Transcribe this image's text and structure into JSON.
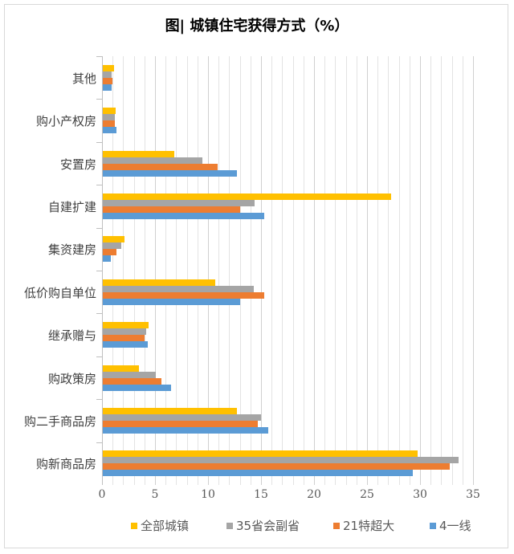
{
  "chart_data": {
    "type": "bar",
    "orientation": "horizontal",
    "title": "图| 城镇住宅获得方式（%）",
    "xlabel": "",
    "ylabel": "",
    "xlim": [
      0,
      35
    ],
    "xticks": [
      0,
      5,
      10,
      15,
      20,
      25,
      30,
      35
    ],
    "grid": true,
    "legend_position": "bottom",
    "categories": [
      "其他",
      "购小产权房",
      "安置房",
      "自建扩建",
      "集资建房",
      "低价购自单位",
      "继承赠与",
      "购政策房",
      "购二手商品房",
      "购新商品房"
    ],
    "series": [
      {
        "name": "全部城镇",
        "color": "#FFC000",
        "values": [
          1.1,
          1.3,
          6.8,
          27.3,
          2.1,
          10.7,
          4.4,
          3.5,
          12.7,
          29.8
        ]
      },
      {
        "name": "35省会副省",
        "color": "#A5A5A5",
        "values": [
          0.9,
          1.2,
          9.5,
          14.4,
          1.8,
          14.3,
          4.2,
          5.1,
          15.0,
          33.6
        ]
      },
      {
        "name": "21特超大",
        "color": "#ED7D31",
        "values": [
          1.0,
          1.2,
          10.9,
          13.0,
          1.4,
          15.3,
          4.0,
          5.6,
          14.7,
          32.8
        ]
      },
      {
        "name": "4一线",
        "color": "#5B9BD5",
        "values": [
          0.9,
          1.4,
          12.7,
          15.3,
          0.8,
          13.0,
          4.3,
          6.5,
          15.7,
          29.3
        ]
      }
    ]
  }
}
